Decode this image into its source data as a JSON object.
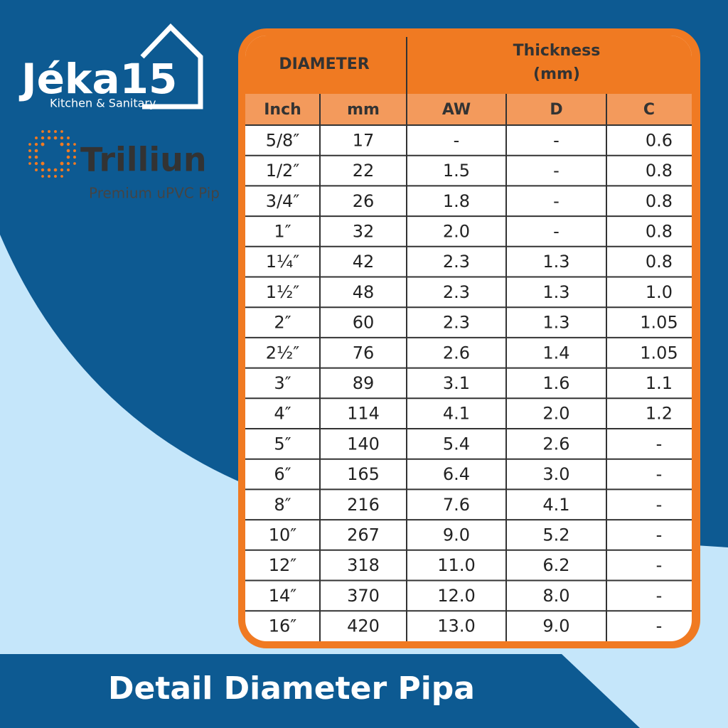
{
  "brand": {
    "name": "Jéka15",
    "tagline": "Kitchen & Sanitary"
  },
  "partner": {
    "name": "Trilliun",
    "tagline": "Premium uPVC Pip"
  },
  "table": {
    "header": {
      "diameter": "DIAMETER",
      "thickness": [
        "Thickness",
        "(mm)"
      ]
    },
    "columns": [
      "Inch",
      "mm",
      "AW",
      "D",
      "C"
    ],
    "rows": [
      [
        "5/8″",
        "17",
        "-",
        "-",
        "0.6"
      ],
      [
        "1/2″",
        "22",
        "1.5",
        "-",
        "0.8"
      ],
      [
        "3/4″",
        "26",
        "1.8",
        "-",
        "0.8"
      ],
      [
        "1″",
        "32",
        "2.0",
        "-",
        "0.8"
      ],
      [
        "1¼″",
        "42",
        "2.3",
        "1.3",
        "0.8"
      ],
      [
        "1½″",
        "48",
        "2.3",
        "1.3",
        "1.0"
      ],
      [
        "2″",
        "60",
        "2.3",
        "1.3",
        "1.05"
      ],
      [
        "2½″",
        "76",
        "2.6",
        "1.4",
        "1.05"
      ],
      [
        "3″",
        "89",
        "3.1",
        "1.6",
        "1.1"
      ],
      [
        "4″",
        "114",
        "4.1",
        "2.0",
        "1.2"
      ],
      [
        "5″",
        "140",
        "5.4",
        "2.6",
        "-"
      ],
      [
        "6″",
        "165",
        "6.4",
        "3.0",
        "-"
      ],
      [
        "8″",
        "216",
        "7.6",
        "4.1",
        "-"
      ],
      [
        "10″",
        "267",
        "9.0",
        "5.2",
        "-"
      ],
      [
        "12″",
        "318",
        "11.0",
        "6.2",
        "-"
      ],
      [
        "14″",
        "370",
        "12.0",
        "8.0",
        "-"
      ],
      [
        "16″",
        "420",
        "13.0",
        "9.0",
        "-"
      ]
    ]
  },
  "footer": {
    "title": "Detail Diameter Pipa"
  }
}
